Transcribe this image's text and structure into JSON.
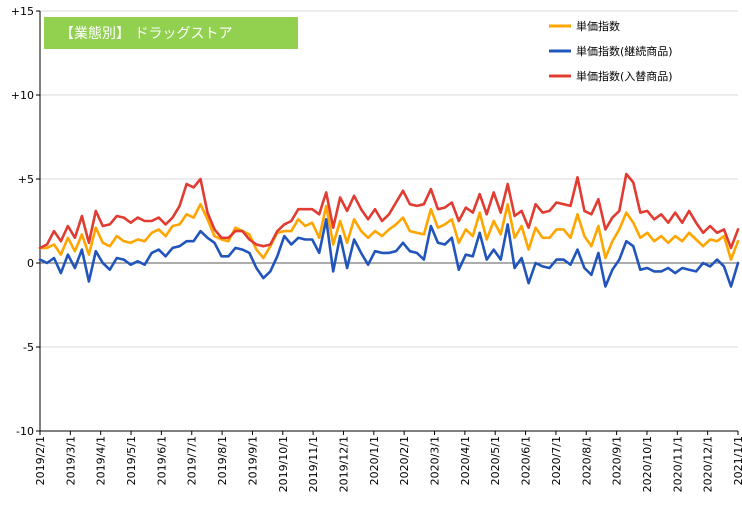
{
  "chart_data": {
    "type": "line",
    "title": "【業態別】 ドラッグストア",
    "xlabel": "",
    "ylabel": "",
    "ylim": [
      -10,
      15
    ],
    "ytick_values": [
      15,
      10,
      5,
      0,
      -5,
      -10
    ],
    "ytick_labels": [
      "+15",
      "+10",
      "+5",
      "0",
      "-5",
      "-10"
    ],
    "xtick_labels": [
      "2019/2/1",
      "2019/3/1",
      "2019/4/1",
      "2019/5/1",
      "2019/6/1",
      "2019/7/1",
      "2019/8/1",
      "2019/9/1",
      "2019/10/1",
      "2019/11/1",
      "2019/12/1",
      "2020/1/1",
      "2020/2/1",
      "2020/3/1",
      "2020/4/1",
      "2020/5/1",
      "2020/6/1",
      "2020/7/1",
      "2020/8/1",
      "2020/9/1",
      "2020/10/1",
      "2020/11/1",
      "2020/12/1",
      "2021/1/1"
    ],
    "grid": true,
    "legend_position": "top-right",
    "colors": {
      "title_bg": "#92D050",
      "grid": "#d9d9d9",
      "axis": "#000000"
    },
    "series": [
      {
        "name": "単価指数",
        "color": "#FFA500",
        "values": [
          0.9,
          0.9,
          1.1,
          0.5,
          1.5,
          0.7,
          1.7,
          0.5,
          2.1,
          1.2,
          1.0,
          1.6,
          1.3,
          1.2,
          1.4,
          1.3,
          1.8,
          2.0,
          1.6,
          2.2,
          2.3,
          2.9,
          2.7,
          3.5,
          2.6,
          1.6,
          1.4,
          1.3,
          2.1,
          1.9,
          1.7,
          0.8,
          0.3,
          1.0,
          1.8,
          1.9,
          1.9,
          2.6,
          2.2,
          2.4,
          1.5,
          3.4,
          1.1,
          2.5,
          1.2,
          2.6,
          1.9,
          1.5,
          1.9,
          1.6,
          2.0,
          2.3,
          2.7,
          1.9,
          1.8,
          1.7,
          3.2,
          2.1,
          2.3,
          2.6,
          1.2,
          2.0,
          1.6,
          3.0,
          1.4,
          2.5,
          1.7,
          3.5,
          1.5,
          2.2,
          0.8,
          2.1,
          1.5,
          1.5,
          2.0,
          2.0,
          1.5,
          2.9,
          1.6,
          1.0,
          2.2,
          0.3,
          1.3,
          2.0,
          3.0,
          2.4,
          1.5,
          1.8,
          1.3,
          1.6,
          1.2,
          1.6,
          1.3,
          1.8,
          1.4,
          1.0,
          1.4,
          1.3,
          1.6,
          0.2,
          1.3
        ]
      },
      {
        "name": "単価指数(継続商品)",
        "color": "#2255BB",
        "values": [
          0.2,
          0.0,
          0.3,
          -0.6,
          0.5,
          -0.3,
          0.8,
          -1.1,
          0.7,
          0.0,
          -0.4,
          0.3,
          0.2,
          -0.1,
          0.1,
          -0.1,
          0.6,
          0.8,
          0.4,
          0.9,
          1.0,
          1.3,
          1.3,
          1.9,
          1.5,
          1.2,
          0.4,
          0.4,
          0.9,
          0.8,
          0.6,
          -0.3,
          -0.9,
          -0.5,
          0.4,
          1.6,
          1.1,
          1.5,
          1.4,
          1.4,
          0.6,
          2.6,
          -0.5,
          1.6,
          -0.3,
          1.4,
          0.6,
          -0.1,
          0.7,
          0.6,
          0.6,
          0.7,
          1.2,
          0.7,
          0.6,
          0.2,
          2.2,
          1.2,
          1.1,
          1.5,
          -0.4,
          0.5,
          0.4,
          1.8,
          0.2,
          0.8,
          0.2,
          2.3,
          -0.3,
          0.3,
          -1.2,
          0.0,
          -0.2,
          -0.3,
          0.2,
          0.2,
          -0.1,
          0.8,
          -0.3,
          -0.7,
          0.6,
          -1.4,
          -0.4,
          0.2,
          1.3,
          1.0,
          -0.4,
          -0.3,
          -0.5,
          -0.5,
          -0.3,
          -0.6,
          -0.3,
          -0.4,
          -0.5,
          0.0,
          -0.2,
          0.2,
          -0.2,
          -1.4,
          0.0
        ]
      },
      {
        "name": "単価指数(入替商品)",
        "color": "#E03C32",
        "values": [
          0.9,
          1.1,
          1.9,
          1.3,
          2.2,
          1.5,
          2.8,
          1.2,
          3.1,
          2.2,
          2.3,
          2.8,
          2.7,
          2.4,
          2.7,
          2.5,
          2.5,
          2.7,
          2.3,
          2.7,
          3.4,
          4.7,
          4.5,
          5.0,
          3.0,
          2.0,
          1.5,
          1.5,
          1.9,
          1.9,
          1.4,
          1.1,
          1.0,
          1.1,
          1.9,
          2.3,
          2.5,
          3.2,
          3.2,
          3.2,
          2.9,
          4.2,
          2.1,
          3.9,
          3.1,
          4.0,
          3.2,
          2.6,
          3.2,
          2.5,
          2.9,
          3.6,
          4.3,
          3.5,
          3.4,
          3.5,
          4.4,
          3.2,
          3.3,
          3.6,
          2.5,
          3.3,
          3.0,
          4.1,
          2.9,
          4.2,
          3.0,
          4.7,
          2.8,
          3.1,
          2.1,
          3.5,
          3.0,
          3.1,
          3.6,
          3.5,
          3.4,
          5.1,
          3.1,
          2.9,
          3.8,
          2.0,
          2.7,
          3.1,
          5.3,
          4.8,
          3.0,
          3.1,
          2.6,
          2.9,
          2.4,
          3.0,
          2.4,
          3.1,
          2.4,
          1.8,
          2.2,
          1.8,
          2.0,
          0.9,
          2.0
        ]
      }
    ]
  }
}
